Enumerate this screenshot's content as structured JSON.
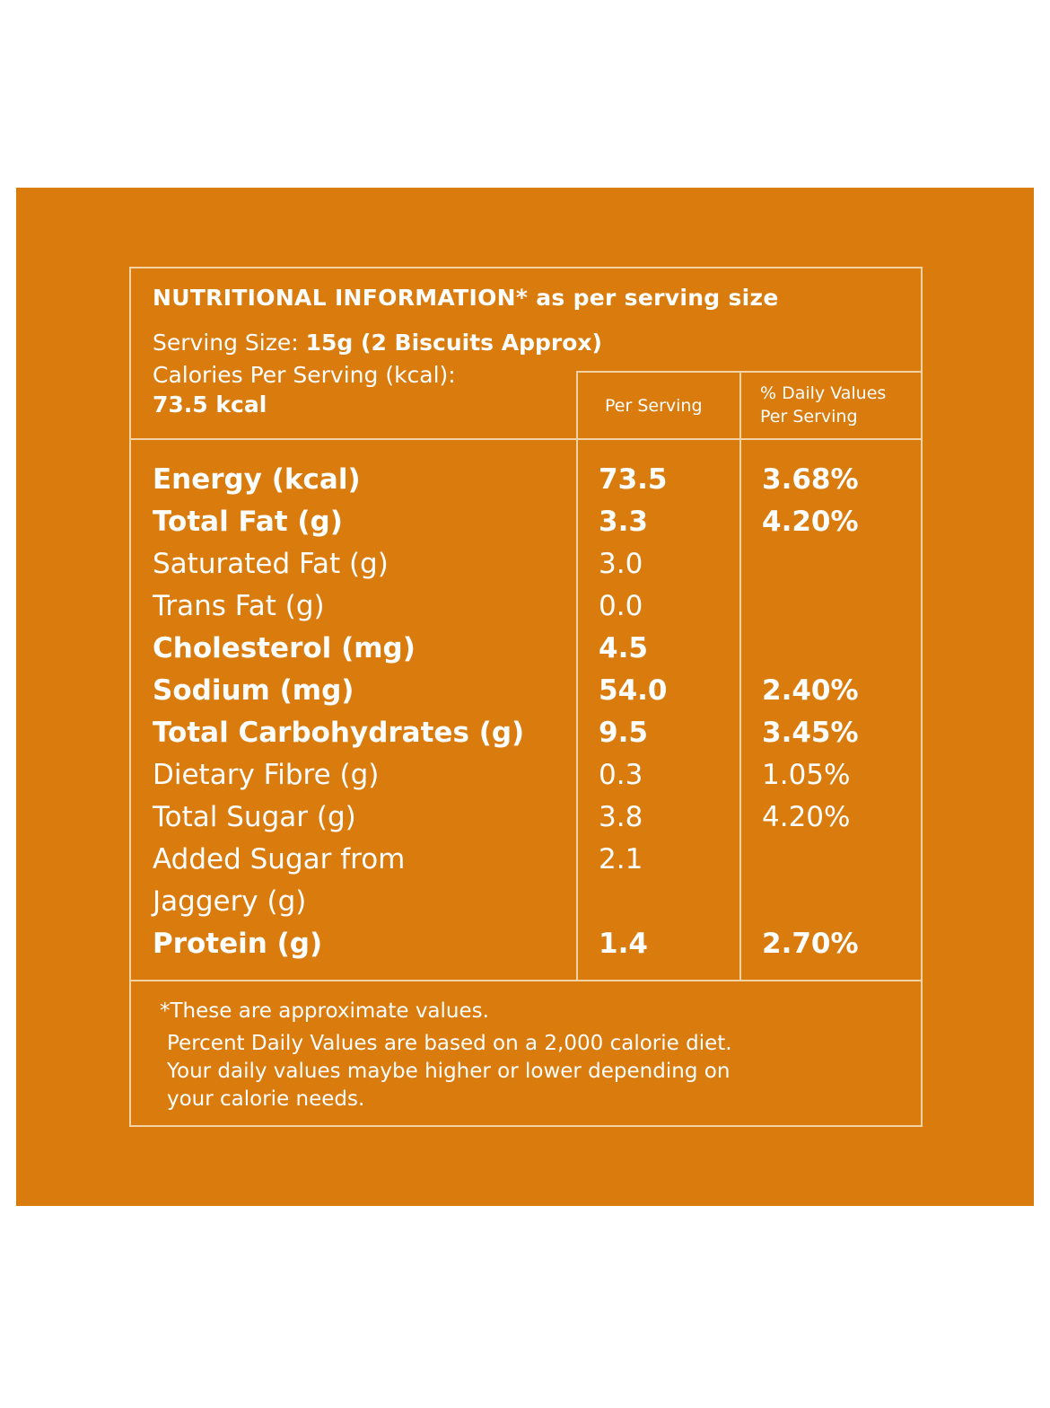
{
  "header": {
    "title": "NUTRITIONAL INFORMATION* as per serving size",
    "serving_size_label": "Serving Size: ",
    "serving_size_value": "15g (2 Biscuits Approx)",
    "calories_label": "Calories Per Serving (kcal):",
    "calories_value": "73.5 kcal",
    "col_per_serving": "Per Serving",
    "col_dv_line1": "% Daily Values",
    "col_dv_line2": "Per Serving"
  },
  "rows": [
    {
      "name": "Energy (kcal)",
      "per": "73.5",
      "dv": "3.68%",
      "bold": true
    },
    {
      "name": "Total Fat (g)",
      "per": "3.3",
      "dv": "4.20%",
      "bold": true
    },
    {
      "name": "Saturated Fat (g)",
      "per": "3.0",
      "dv": "",
      "bold": false
    },
    {
      "name": "Trans Fat (g)",
      "per": "0.0",
      "dv": "",
      "bold": false
    },
    {
      "name": "Cholesterol (mg)",
      "per": "4.5",
      "dv": "",
      "bold": true
    },
    {
      "name": "Sodium (mg)",
      "per": "54.0",
      "dv": "2.40%",
      "bold": true
    },
    {
      "name": "Total Carbohydrates (g)",
      "per": "9.5",
      "dv": "3.45%",
      "bold": true
    },
    {
      "name": "Dietary Fibre (g)",
      "per": "0.3",
      "dv": "1.05%",
      "bold": false
    },
    {
      "name": "Total Sugar (g)",
      "per": "3.8",
      "dv": "4.20%",
      "bold": false
    },
    {
      "name": "Added Sugar from\nJaggery (g)",
      "per": "2.1",
      "dv": "",
      "bold": false
    },
    {
      "name": "Protein (g)",
      "per": "1.4",
      "dv": "2.70%",
      "bold": true
    }
  ],
  "footer": {
    "line1": "*These are approximate values.",
    "line2": "Percent Daily Values are based on a 2,000 calorie diet.",
    "line3": "Your daily values maybe higher or lower depending on",
    "line4": "your calorie needs."
  },
  "colors": {
    "background": "#D97B0D",
    "border": "#F3D2A6",
    "text": "#FFFFFF"
  }
}
